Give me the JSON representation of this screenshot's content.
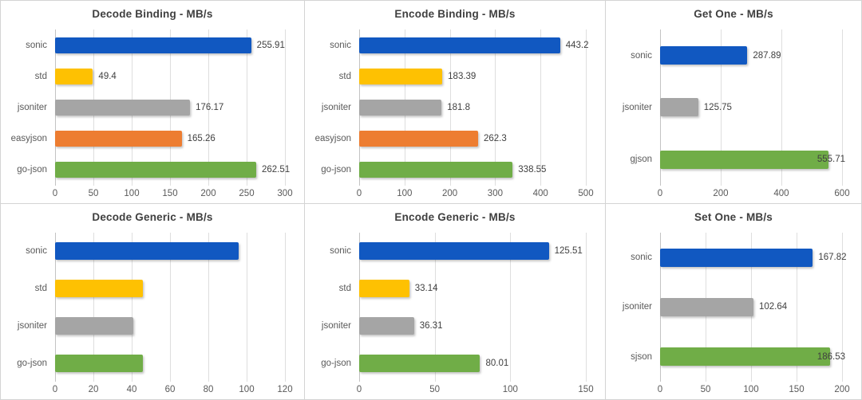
{
  "page": {
    "background": "#ffffff",
    "panel_border_color": "#d4d4d4",
    "title_color": "#3f3f3f",
    "axis_text_color": "#595959",
    "value_text_color": "#404040",
    "gridline_color": "#dedede"
  },
  "palette": {
    "sonic": "#1158c1",
    "std": "#fec102",
    "jsoniter": "#a5a5a5",
    "easyjson": "#ed7d31",
    "go-json": "#70ad47",
    "gjson": "#70ad47",
    "sjson": "#70ad47"
  },
  "chart_data": [
    {
      "type": "bar",
      "orientation": "horizontal",
      "title": "Decode Binding - MB/s",
      "categories": [
        "sonic",
        "std",
        "jsoniter",
        "easyjson",
        "go-json"
      ],
      "values": [
        255.91,
        49.4,
        176.17,
        165.26,
        262.51
      ],
      "value_labels": [
        "255.91",
        "49.4",
        "176.17",
        "165.26",
        "262.51"
      ],
      "value_labels_visible": true,
      "colors": [
        "#1158c1",
        "#fec102",
        "#a5a5a5",
        "#ed7d31",
        "#70ad47"
      ],
      "xlim": [
        0,
        300
      ],
      "ticks": [
        0,
        50,
        100,
        150,
        200,
        250,
        300
      ],
      "grid": true,
      "legend": false
    },
    {
      "type": "bar",
      "orientation": "horizontal",
      "title": "Encode Binding - MB/s",
      "categories": [
        "sonic",
        "std",
        "jsoniter",
        "easyjson",
        "go-json"
      ],
      "values": [
        443.2,
        183.39,
        181.8,
        262.3,
        338.55
      ],
      "value_labels": [
        "443.2",
        "183.39",
        "181.8",
        "262.3",
        "338.55"
      ],
      "value_labels_visible": true,
      "colors": [
        "#1158c1",
        "#fec102",
        "#a5a5a5",
        "#ed7d31",
        "#70ad47"
      ],
      "xlim": [
        0,
        500
      ],
      "ticks": [
        0,
        100,
        200,
        300,
        400,
        500
      ],
      "grid": true,
      "legend": false
    },
    {
      "type": "bar",
      "orientation": "horizontal",
      "title": "Get One - MB/s",
      "categories": [
        "sonic",
        "jsoniter",
        "gjson"
      ],
      "values": [
        287.89,
        125.75,
        555.71
      ],
      "value_labels": [
        "287.89",
        "125.75",
        "555.71"
      ],
      "value_labels_visible": true,
      "colors": [
        "#1158c1",
        "#a5a5a5",
        "#70ad47"
      ],
      "xlim": [
        0,
        600
      ],
      "ticks": [
        0,
        200,
        400,
        600
      ],
      "grid": true,
      "legend": false
    },
    {
      "type": "bar",
      "orientation": "horizontal",
      "title": "Decode Generic - MB/s",
      "categories": [
        "sonic",
        "std",
        "jsoniter",
        "go-json"
      ],
      "values": [
        96,
        46,
        41,
        46
      ],
      "values_estimated_from_gridlines": true,
      "value_labels": [
        "",
        "",
        "",
        ""
      ],
      "value_labels_visible": false,
      "colors": [
        "#1158c1",
        "#fec102",
        "#a5a5a5",
        "#70ad47"
      ],
      "xlim": [
        0,
        120
      ],
      "ticks": [
        0,
        20,
        40,
        60,
        80,
        100,
        120
      ],
      "grid": true,
      "legend": false
    },
    {
      "type": "bar",
      "orientation": "horizontal",
      "title": "Encode Generic - MB/s",
      "categories": [
        "sonic",
        "std",
        "jsoniter",
        "go-json"
      ],
      "values": [
        125.51,
        33.14,
        36.31,
        80.01
      ],
      "value_labels": [
        "125.51",
        "33.14",
        "36.31",
        "80.01"
      ],
      "value_labels_visible": true,
      "colors": [
        "#1158c1",
        "#fec102",
        "#a5a5a5",
        "#70ad47"
      ],
      "xlim": [
        0,
        150
      ],
      "ticks": [
        0,
        50,
        100,
        150
      ],
      "grid": true,
      "legend": false
    },
    {
      "type": "bar",
      "orientation": "horizontal",
      "title": "Set One - MB/s",
      "categories": [
        "sonic",
        "jsoniter",
        "sjson"
      ],
      "values": [
        167.82,
        102.64,
        186.53
      ],
      "value_labels": [
        "167.82",
        "102.64",
        "186.53"
      ],
      "value_labels_visible": true,
      "colors": [
        "#1158c1",
        "#a5a5a5",
        "#70ad47"
      ],
      "xlim": [
        0,
        200
      ],
      "ticks": [
        0,
        50,
        100,
        150,
        200
      ],
      "grid": true,
      "legend": false
    }
  ]
}
